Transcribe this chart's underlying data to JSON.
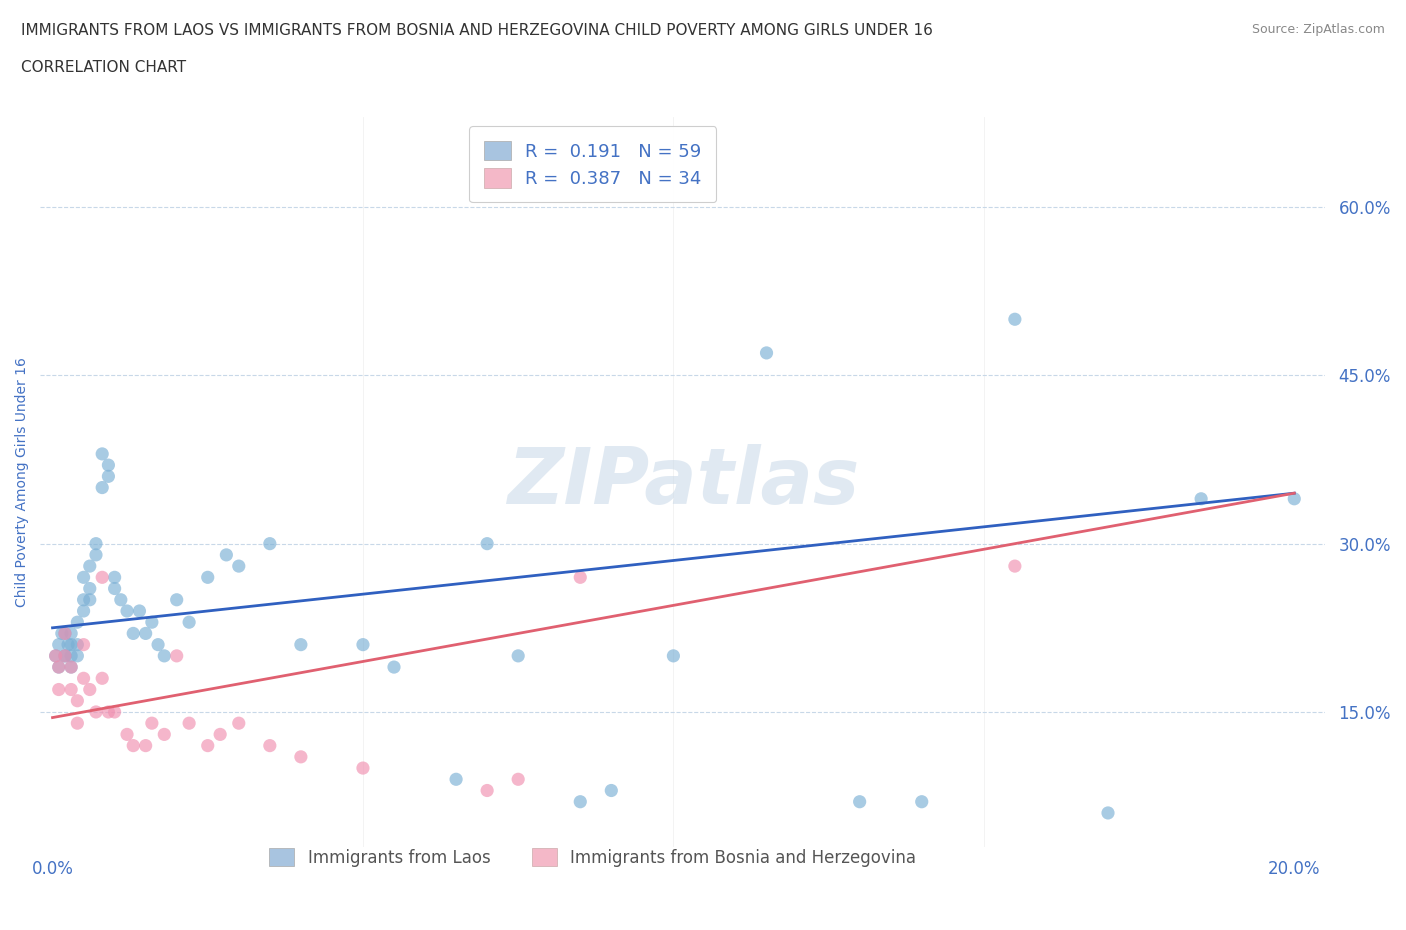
{
  "title_line1": "IMMIGRANTS FROM LAOS VS IMMIGRANTS FROM BOSNIA AND HERZEGOVINA CHILD POVERTY AMONG GIRLS UNDER 16",
  "title_line2": "CORRELATION CHART",
  "source": "Source: ZipAtlas.com",
  "ylabel": "Child Poverty Among Girls Under 16",
  "ytick_labels": [
    "15.0%",
    "30.0%",
    "45.0%",
    "60.0%"
  ],
  "ytick_values": [
    0.15,
    0.3,
    0.45,
    0.6
  ],
  "xmin": -0.002,
  "xmax": 0.205,
  "ymin": 0.03,
  "ymax": 0.68,
  "watermark": "ZIPatlas",
  "legend_color1": "#a8c4e0",
  "legend_color2": "#f4b8c8",
  "scatter_color1": "#7aafd4",
  "scatter_color2": "#f090b0",
  "line_color1": "#3060c0",
  "line_color2": "#e06070",
  "title_color": "#333333",
  "axis_color": "#4472c4",
  "grid_color": "#c8d8e8",
  "background": "#ffffff",
  "r1": 0.191,
  "r2": 0.387,
  "n1": 59,
  "n2": 34,
  "bottom_label1": "Immigrants from Laos",
  "bottom_label2": "Immigrants from Bosnia and Herzegovina",
  "laos_x": [
    0.0005,
    0.001,
    0.001,
    0.0015,
    0.002,
    0.002,
    0.002,
    0.0025,
    0.003,
    0.003,
    0.003,
    0.003,
    0.004,
    0.004,
    0.004,
    0.005,
    0.005,
    0.005,
    0.006,
    0.006,
    0.006,
    0.007,
    0.007,
    0.008,
    0.008,
    0.009,
    0.009,
    0.01,
    0.01,
    0.011,
    0.012,
    0.013,
    0.014,
    0.015,
    0.016,
    0.017,
    0.018,
    0.02,
    0.022,
    0.025,
    0.028,
    0.03,
    0.035,
    0.04,
    0.05,
    0.055,
    0.065,
    0.07,
    0.075,
    0.085,
    0.09,
    0.1,
    0.115,
    0.13,
    0.14,
    0.155,
    0.17,
    0.185,
    0.2
  ],
  "laos_y": [
    0.2,
    0.21,
    0.19,
    0.22,
    0.2,
    0.22,
    0.2,
    0.21,
    0.22,
    0.21,
    0.2,
    0.19,
    0.23,
    0.21,
    0.2,
    0.27,
    0.25,
    0.24,
    0.28,
    0.26,
    0.25,
    0.3,
    0.29,
    0.35,
    0.38,
    0.37,
    0.36,
    0.27,
    0.26,
    0.25,
    0.24,
    0.22,
    0.24,
    0.22,
    0.23,
    0.21,
    0.2,
    0.25,
    0.23,
    0.27,
    0.29,
    0.28,
    0.3,
    0.21,
    0.21,
    0.19,
    0.09,
    0.3,
    0.2,
    0.07,
    0.08,
    0.2,
    0.47,
    0.07,
    0.07,
    0.5,
    0.06,
    0.34,
    0.34
  ],
  "bosnia_x": [
    0.0005,
    0.001,
    0.001,
    0.002,
    0.002,
    0.003,
    0.003,
    0.004,
    0.004,
    0.005,
    0.005,
    0.006,
    0.007,
    0.008,
    0.008,
    0.009,
    0.01,
    0.012,
    0.013,
    0.015,
    0.016,
    0.018,
    0.02,
    0.022,
    0.025,
    0.027,
    0.03,
    0.035,
    0.04,
    0.05,
    0.07,
    0.075,
    0.085,
    0.155
  ],
  "bosnia_y": [
    0.2,
    0.19,
    0.17,
    0.22,
    0.2,
    0.19,
    0.17,
    0.16,
    0.14,
    0.21,
    0.18,
    0.17,
    0.15,
    0.27,
    0.18,
    0.15,
    0.15,
    0.13,
    0.12,
    0.12,
    0.14,
    0.13,
    0.2,
    0.14,
    0.12,
    0.13,
    0.14,
    0.12,
    0.11,
    0.1,
    0.08,
    0.09,
    0.27,
    0.28
  ]
}
